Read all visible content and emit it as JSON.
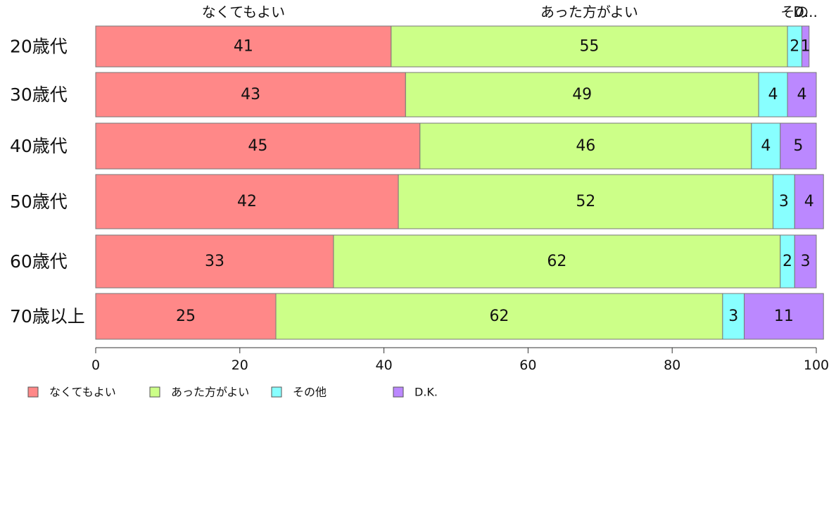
{
  "chart_data": {
    "type": "bar",
    "orientation": "horizontal",
    "stacked": true,
    "categories": [
      "20歳代",
      "30歳代",
      "40歳代",
      "50歳代",
      "60歳代",
      "70歳以上"
    ],
    "series": [
      {
        "name": "なくてもよい",
        "color": "#ff8888",
        "values": [
          41,
          43,
          45,
          42,
          33,
          25
        ]
      },
      {
        "name": "あった方がよい",
        "color": "#ccff88",
        "values": [
          55,
          49,
          46,
          52,
          62,
          62
        ]
      },
      {
        "name": "その他",
        "color": "#88ffff",
        "values": [
          2,
          4,
          4,
          3,
          2,
          3
        ]
      },
      {
        "name": "D.K.",
        "color": "#bb88ff",
        "values": [
          1,
          4,
          5,
          4,
          3,
          11
        ]
      }
    ],
    "top_labels": [
      "なくてもよい",
      "あった方がよい",
      "その",
      "D..."
    ],
    "xlim": [
      0,
      100
    ],
    "xticks": [
      "0",
      "20",
      "40",
      "60",
      "80",
      "100"
    ],
    "grid": false,
    "legend_position": "bottom"
  }
}
